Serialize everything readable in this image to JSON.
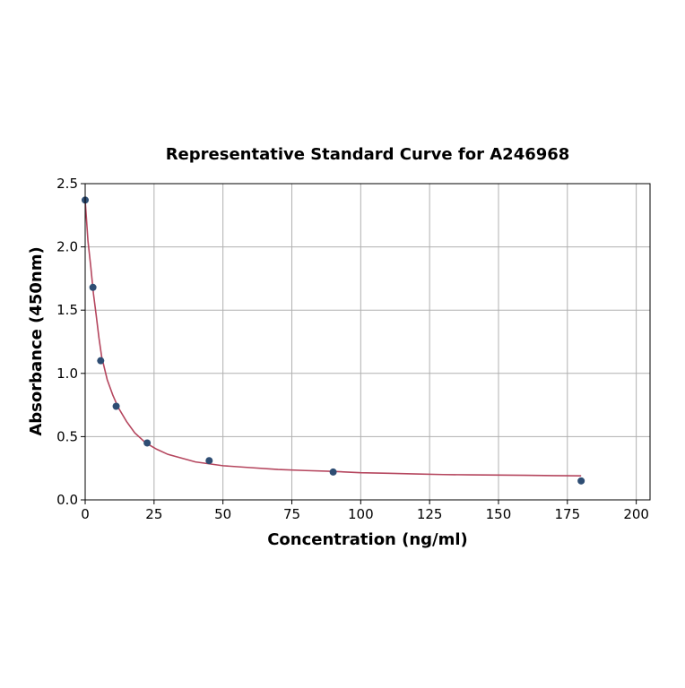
{
  "chart_data": {
    "type": "scatter",
    "title": "Representative Standard Curve for A246968",
    "xlabel": "Concentration (ng/ml)",
    "ylabel": "Absorbance (450nm)",
    "xlim": [
      0,
      205
    ],
    "ylim": [
      0,
      2.5
    ],
    "x_ticks": [
      0,
      25,
      50,
      75,
      100,
      125,
      150,
      175,
      200
    ],
    "y_ticks": [
      0.0,
      0.5,
      1.0,
      1.5,
      2.0,
      2.5
    ],
    "x_tick_labels": [
      "0",
      "25",
      "50",
      "75",
      "100",
      "125",
      "150",
      "175",
      "200"
    ],
    "y_tick_labels": [
      "0.0",
      "0.5",
      "1.0",
      "1.5",
      "2.0",
      "2.5"
    ],
    "grid": true,
    "legend": "none",
    "series": [
      {
        "kind": "points",
        "color": "#2e4d73",
        "x": [
          0,
          2.81,
          5.63,
          11.25,
          22.5,
          45,
          90,
          180
        ],
        "y": [
          2.37,
          1.68,
          1.1,
          0.74,
          0.45,
          0.31,
          0.22,
          0.15
        ]
      },
      {
        "kind": "fit-curve",
        "color": "#b5465e",
        "x": [
          0,
          1,
          2,
          3,
          4,
          5,
          6,
          8,
          10,
          12,
          15,
          18,
          22,
          26,
          30,
          35,
          40,
          50,
          60,
          70,
          80,
          90,
          100,
          110,
          120,
          130,
          140,
          150,
          160,
          170,
          180
        ],
        "y": [
          2.37,
          2.05,
          1.85,
          1.63,
          1.46,
          1.28,
          1.13,
          0.95,
          0.83,
          0.73,
          0.62,
          0.53,
          0.45,
          0.4,
          0.36,
          0.33,
          0.3,
          0.27,
          0.255,
          0.24,
          0.232,
          0.225,
          0.215,
          0.21,
          0.205,
          0.2,
          0.198,
          0.196,
          0.194,
          0.192,
          0.19
        ]
      }
    ]
  }
}
